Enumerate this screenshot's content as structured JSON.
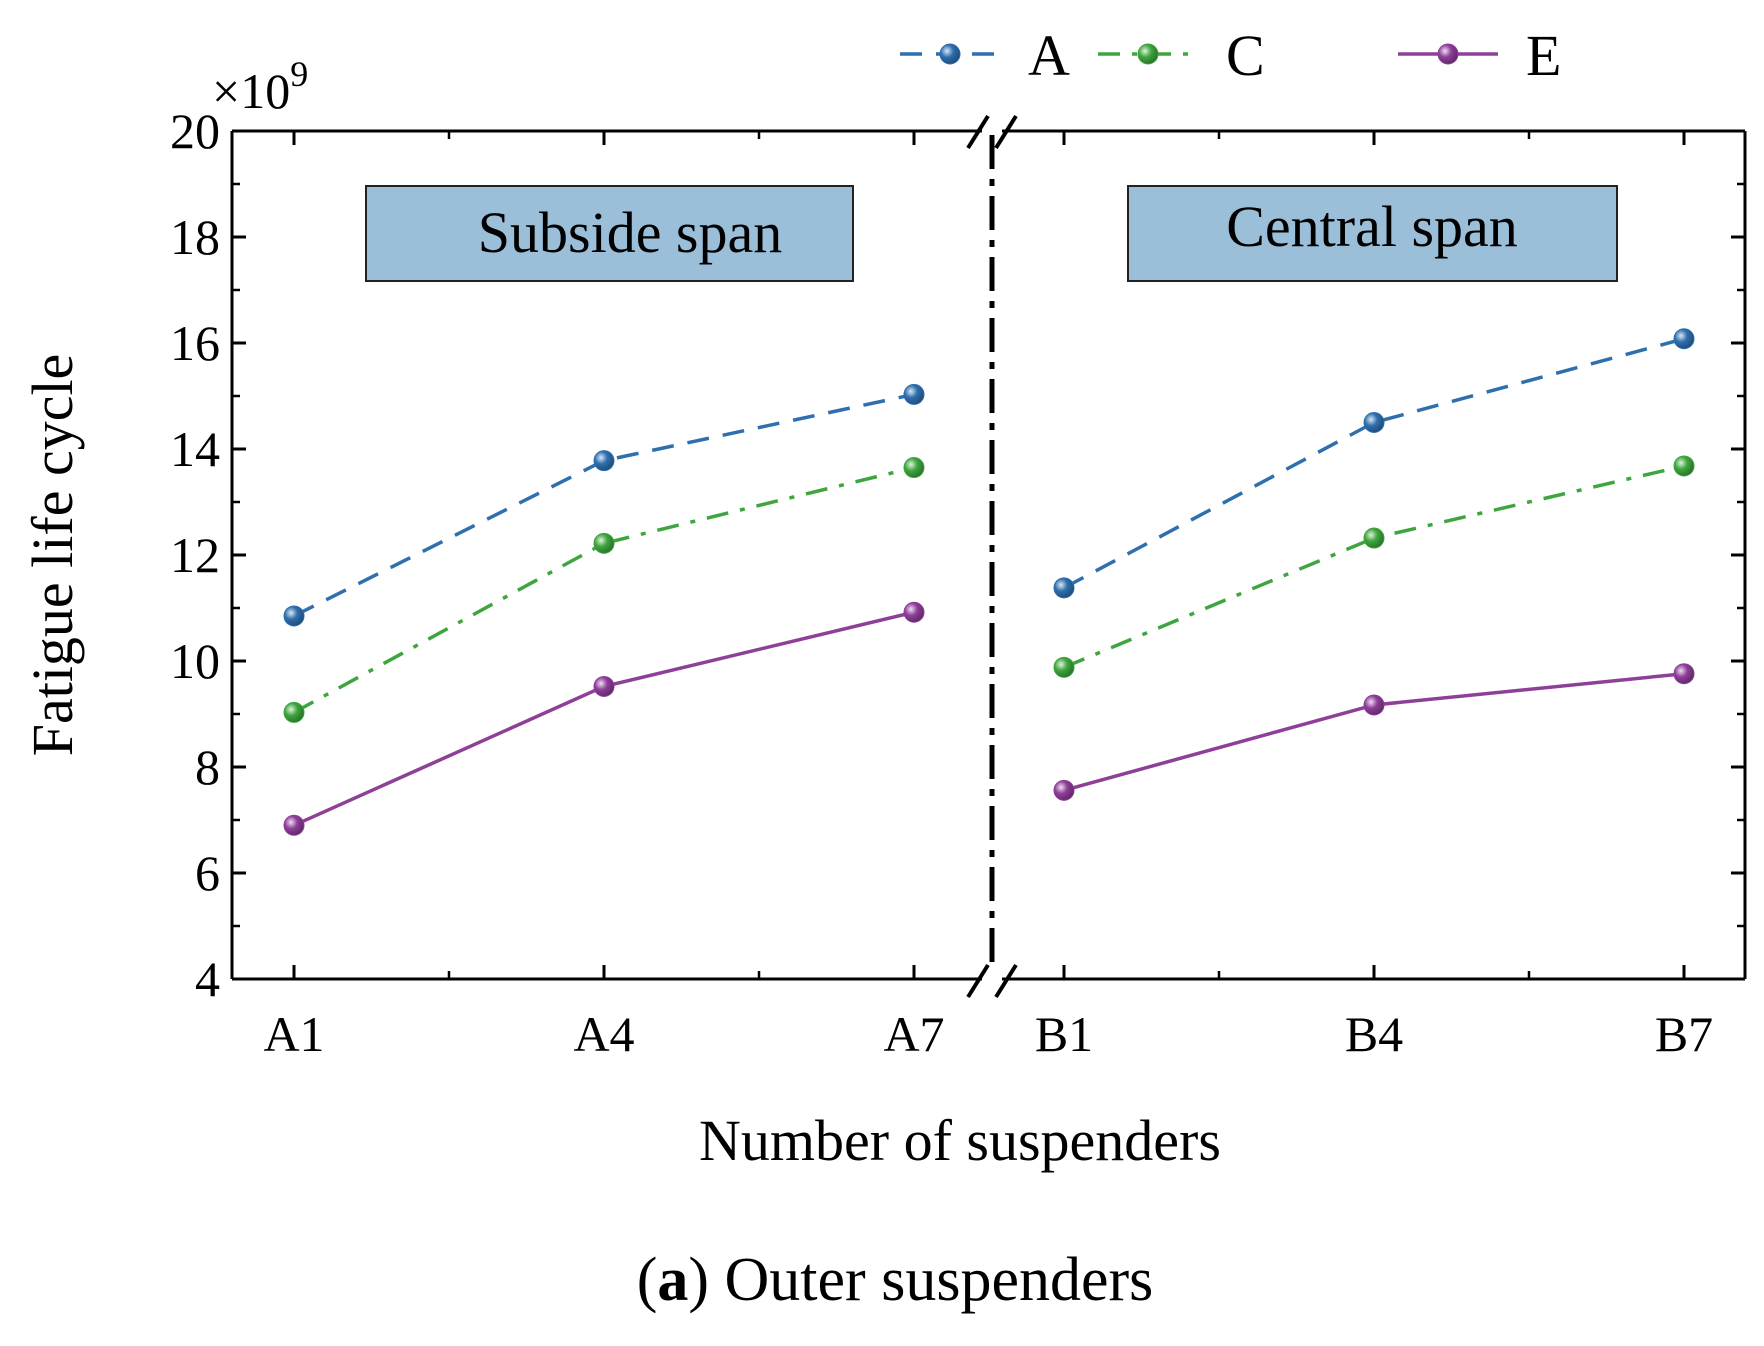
{
  "chart_data": {
    "type": "line",
    "ylabel": "Fatigue life cycle",
    "xlabel": "Number of suspenders",
    "y_multiplier": "×10",
    "y_multiplier_exp": "9",
    "ylim": [
      4,
      20
    ],
    "yticks": [
      4,
      6,
      8,
      10,
      12,
      14,
      16,
      18,
      20
    ],
    "y_tick_labels": [
      "4",
      "6",
      "8",
      "10",
      "12",
      "14",
      "16",
      "18",
      "20"
    ],
    "axis_break": true,
    "grid": false,
    "legend_position": "top-right",
    "panels": [
      {
        "title": "Subside span",
        "categories": [
          "A1",
          "A4",
          "A7"
        ],
        "series": [
          {
            "name": "A",
            "values": [
              10.85,
              13.78,
              15.03
            ]
          },
          {
            "name": "C",
            "values": [
              9.03,
              12.22,
              13.65
            ]
          },
          {
            "name": "E",
            "values": [
              6.9,
              9.52,
              10.92
            ]
          }
        ]
      },
      {
        "title": "Central span",
        "categories": [
          "B1",
          "B4",
          "B7"
        ],
        "series": [
          {
            "name": "A",
            "values": [
              11.38,
              14.5,
              16.08
            ]
          },
          {
            "name": "C",
            "values": [
              9.88,
              12.32,
              13.68
            ]
          },
          {
            "name": "E",
            "values": [
              7.56,
              9.17,
              9.76
            ]
          }
        ]
      }
    ],
    "series_styles": [
      {
        "name": "A",
        "color": "#2f6fad",
        "dash": "dashed"
      },
      {
        "name": "C",
        "color": "#3fa53f",
        "dash": "dash-dot"
      },
      {
        "name": "E",
        "color": "#8e3f98",
        "dash": "solid"
      }
    ],
    "caption_label": "a",
    "caption_text": " Outer suspenders",
    "panel_box_color": "#9bbfd9"
  }
}
